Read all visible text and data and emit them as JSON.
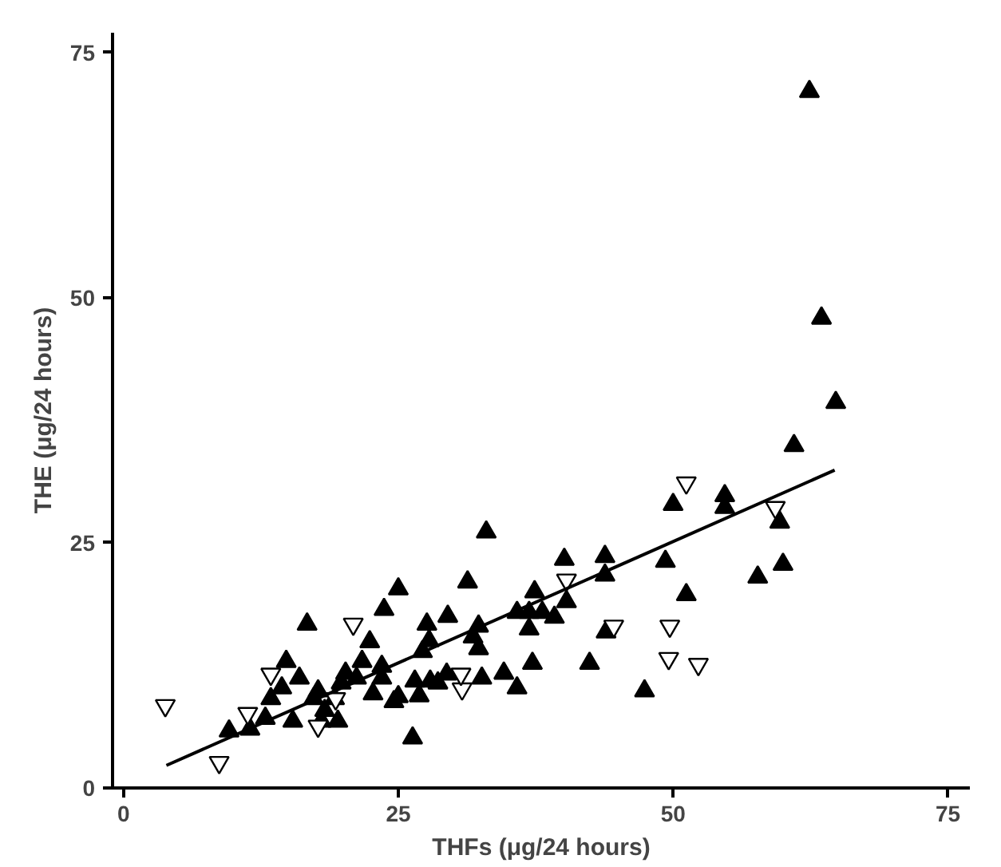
{
  "chart_data": {
    "type": "scatter",
    "xlabel": "THFs (μg/24 hours)",
    "ylabel": "THE (μg/24 hours)",
    "xlim": [
      -1,
      77
    ],
    "ylim": [
      0,
      77
    ],
    "xticks": [
      0,
      25,
      50,
      75
    ],
    "yticks": [
      0,
      25,
      50,
      75
    ],
    "grid": false,
    "series": [
      {
        "color": "#000000",
        "marker": "triangle",
        "x": [
          62.4,
          63.5,
          64.8,
          61.0,
          50.0,
          54.7,
          54.7,
          59.7,
          60.0,
          57.7,
          51.2,
          49.3,
          33.0,
          40.1,
          43.8,
          43.8,
          25.0,
          31.3,
          37.4,
          40.3,
          35.8,
          36.9,
          38.1,
          39.2,
          36.9,
          27.6,
          29.5,
          32.3,
          31.8,
          32.3,
          27.8,
          27.2,
          43.9,
          37.2,
          42.4,
          34.6,
          35.8,
          32.6,
          26.5,
          27.9,
          29.4,
          28.6,
          25.0,
          26.9,
          26.3,
          47.4,
          23.7,
          16.7,
          22.4,
          21.7,
          23.5,
          14.8,
          16.0,
          14.4,
          20.2,
          21.2,
          17.7,
          17.3,
          13.4,
          19.2,
          19.8,
          23.5,
          22.7,
          24.6,
          12.9,
          15.4,
          18.3,
          18.0,
          19.5,
          11.5,
          9.6
        ],
        "values": [
          71.0,
          47.9,
          39.3,
          34.9,
          28.9,
          29.8,
          28.6,
          27.1,
          22.8,
          21.5,
          19.7,
          23.1,
          26.1,
          23.3,
          23.6,
          21.7,
          20.3,
          21.0,
          20.0,
          19.0,
          17.9,
          17.9,
          17.9,
          17.4,
          16.2,
          16.7,
          17.5,
          16.5,
          15.4,
          14.2,
          15.0,
          13.9,
          15.9,
          12.7,
          12.7,
          11.7,
          10.2,
          11.2,
          10.9,
          10.9,
          11.6,
          10.7,
          9.3,
          9.4,
          5.1,
          9.9,
          18.2,
          16.7,
          14.9,
          12.9,
          12.4,
          12.9,
          11.2,
          10.2,
          11.7,
          11.2,
          9.9,
          9.1,
          9.1,
          9.1,
          10.7,
          11.2,
          9.6,
          8.8,
          7.1,
          6.8,
          7.9,
          6.8,
          6.8,
          6.0,
          5.8
        ]
      },
      {
        "color": "#ffffff",
        "marker": "triangle",
        "x": [
          51.2,
          59.3,
          49.7,
          49.6,
          52.3,
          40.3,
          44.6,
          30.8,
          30.7,
          3.8,
          8.7,
          20.9,
          13.4,
          11.3,
          17.7,
          19.3
        ],
        "values": [
          31.1,
          28.6,
          16.5,
          13.2,
          12.6,
          21.2,
          16.5,
          10.1,
          11.6,
          8.4,
          2.6,
          16.7,
          11.6,
          7.6,
          6.3,
          9.1
        ]
      },
      {
        "type": "line",
        "color": "#000000",
        "marker": "none",
        "x": [
          3.9,
          64.7
        ],
        "values": [
          2.3,
          32.4
        ]
      }
    ]
  }
}
